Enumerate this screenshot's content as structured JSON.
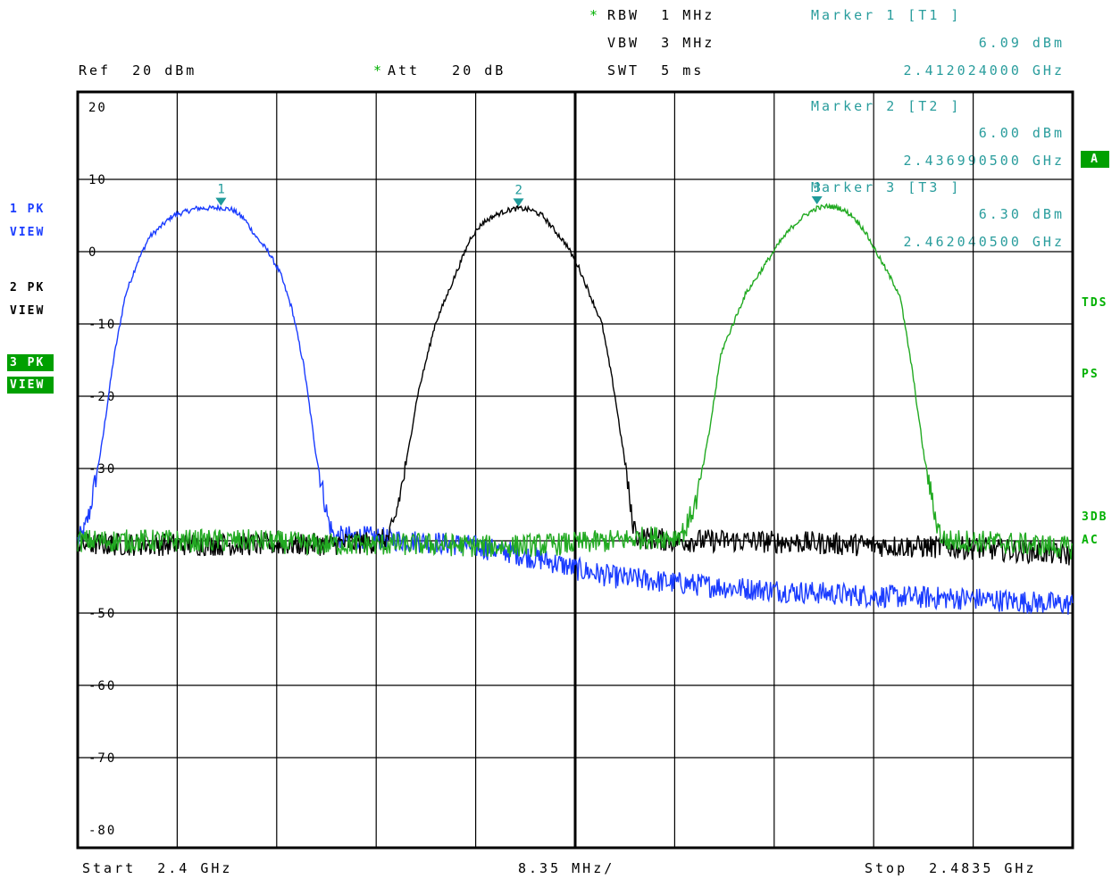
{
  "header": {
    "rbw_star": "*",
    "rbw": "RBW  1 MHz",
    "vbw": "VBW  3 MHz",
    "swt": "SWT  5 ms",
    "ref": "Ref  20 dBm",
    "att_star": "*",
    "att": "Att   20 dB"
  },
  "markers": [
    {
      "label": "Marker 1 [T1 ]",
      "level": "6.09 dBm",
      "freq": "2.412024000 GHz",
      "num": "1"
    },
    {
      "label": "Marker 2 [T2 ]",
      "level": "6.00 dBm",
      "freq": "2.436990500 GHz",
      "num": "2"
    },
    {
      "label": "Marker 3 [T3 ]",
      "level": "6.30 dBm",
      "freq": "2.462040500 GHz",
      "num": "3"
    }
  ],
  "left_panel": {
    "t1_a": "1 PK",
    "t1_b": "VIEW",
    "t2_a": "2 PK",
    "t2_b": "VIEW",
    "t3_a": "3 PK",
    "t3_b": "VIEW"
  },
  "right_panel": {
    "a": "A",
    "tds": "TDS",
    "ps": "PS",
    "db3": "3DB",
    "ac": "AC"
  },
  "footer": {
    "start": "Start  2.4 GHz",
    "span": "8.35 MHz/",
    "stop": "Stop  2.4835 GHz"
  },
  "colors": {
    "trace1": "#1a3cff",
    "trace2": "#000000",
    "trace3": "#22aa22",
    "marker": "#1f9a9a",
    "status": "#00a000"
  },
  "chart_data": {
    "type": "line",
    "x_unit": "GHz",
    "y_unit": "dBm",
    "xlim": [
      2.4,
      2.4835
    ],
    "ylim": [
      -80,
      20
    ],
    "yticks": [
      20,
      10,
      0,
      -10,
      -20,
      -30,
      -40,
      -50,
      -60,
      -70,
      -80
    ],
    "ytick_labels": [
      "20",
      "10",
      "0",
      "-10",
      "-20",
      "-30",
      "-40",
      "-50",
      "-60",
      "-70",
      "-80"
    ],
    "grid": true,
    "series": [
      {
        "name": "1 PK VIEW",
        "x": [
          2.4,
          2.4005,
          2.401,
          2.402,
          2.403,
          2.404,
          2.405,
          2.406,
          2.407,
          2.408,
          2.409,
          2.41,
          2.411,
          2.412,
          2.413,
          2.414,
          2.415,
          2.416,
          2.417,
          2.418,
          2.419,
          2.42,
          2.421,
          2.4215,
          2.424,
          2.428,
          2.432,
          2.436,
          2.44,
          2.442,
          2.445,
          2.45,
          2.455,
          2.46,
          2.465,
          2.47,
          2.475,
          2.48,
          2.4835
        ],
        "y": [
          -40,
          -39,
          -36,
          -27,
          -15,
          -6,
          -1.5,
          2,
          3.5,
          5,
          5.5,
          6,
          6,
          6.09,
          5.8,
          4.5,
          2,
          0,
          -3,
          -8,
          -16,
          -28,
          -37,
          -39.5,
          -39.5,
          -40,
          -40.5,
          -41.5,
          -43,
          -44,
          -45,
          -45.8,
          -46.5,
          -47,
          -47.5,
          -47.8,
          -48,
          -48.5,
          -48.8
        ]
      },
      {
        "name": "2 PK VIEW",
        "x": [
          2.4,
          2.405,
          2.41,
          2.415,
          2.42,
          2.425,
          2.426,
          2.4265,
          2.4275,
          2.4285,
          2.43,
          2.431,
          2.432,
          2.433,
          2.434,
          2.435,
          2.436,
          2.437,
          2.438,
          2.439,
          2.44,
          2.441,
          2.442,
          2.443,
          2.444,
          2.445,
          2.446,
          2.4465,
          2.447,
          2.45,
          2.455,
          2.46,
          2.465,
          2.47,
          2.475,
          2.48,
          2.4835
        ],
        "y": [
          -40.5,
          -40.5,
          -40.5,
          -40.5,
          -40.5,
          -40.2,
          -39.8,
          -38,
          -30,
          -20,
          -10,
          -6,
          -2,
          2,
          4,
          5,
          5.7,
          6,
          5.8,
          5,
          3,
          1,
          -2,
          -6,
          -10,
          -19,
          -30,
          -37,
          -39.5,
          -40,
          -40,
          -40.2,
          -40.5,
          -40.8,
          -41,
          -41.5,
          -42
        ]
      },
      {
        "name": "3 PK VIEW",
        "x": [
          2.4,
          2.405,
          2.41,
          2.415,
          2.42,
          2.425,
          2.43,
          2.435,
          2.44,
          2.445,
          2.448,
          2.45,
          2.451,
          2.452,
          2.453,
          2.454,
          2.456,
          2.458,
          2.459,
          2.46,
          2.461,
          2.462,
          2.463,
          2.464,
          2.465,
          2.466,
          2.467,
          2.468,
          2.469,
          2.47,
          2.471,
          2.472,
          2.4725,
          2.473,
          2.475,
          2.48,
          2.4835
        ],
        "y": [
          -40,
          -40,
          -40,
          -40,
          -40.5,
          -40.5,
          -40.5,
          -40.8,
          -40.5,
          -40,
          -39.5,
          -39.5,
          -38.5,
          -34,
          -25,
          -14,
          -6,
          -1,
          1.5,
          3.5,
          5,
          6,
          6.3,
          6,
          5,
          3,
          0,
          -3,
          -6,
          -16,
          -28,
          -37,
          -39.5,
          -40,
          -40,
          -40.5,
          -41
        ]
      }
    ],
    "markers": [
      {
        "x": 2.412024,
        "y": 6.09,
        "label": "1"
      },
      {
        "x": 2.4369905,
        "y": 6.0,
        "label": "2"
      },
      {
        "x": 2.4620405,
        "y": 6.3,
        "label": "3"
      }
    ]
  }
}
